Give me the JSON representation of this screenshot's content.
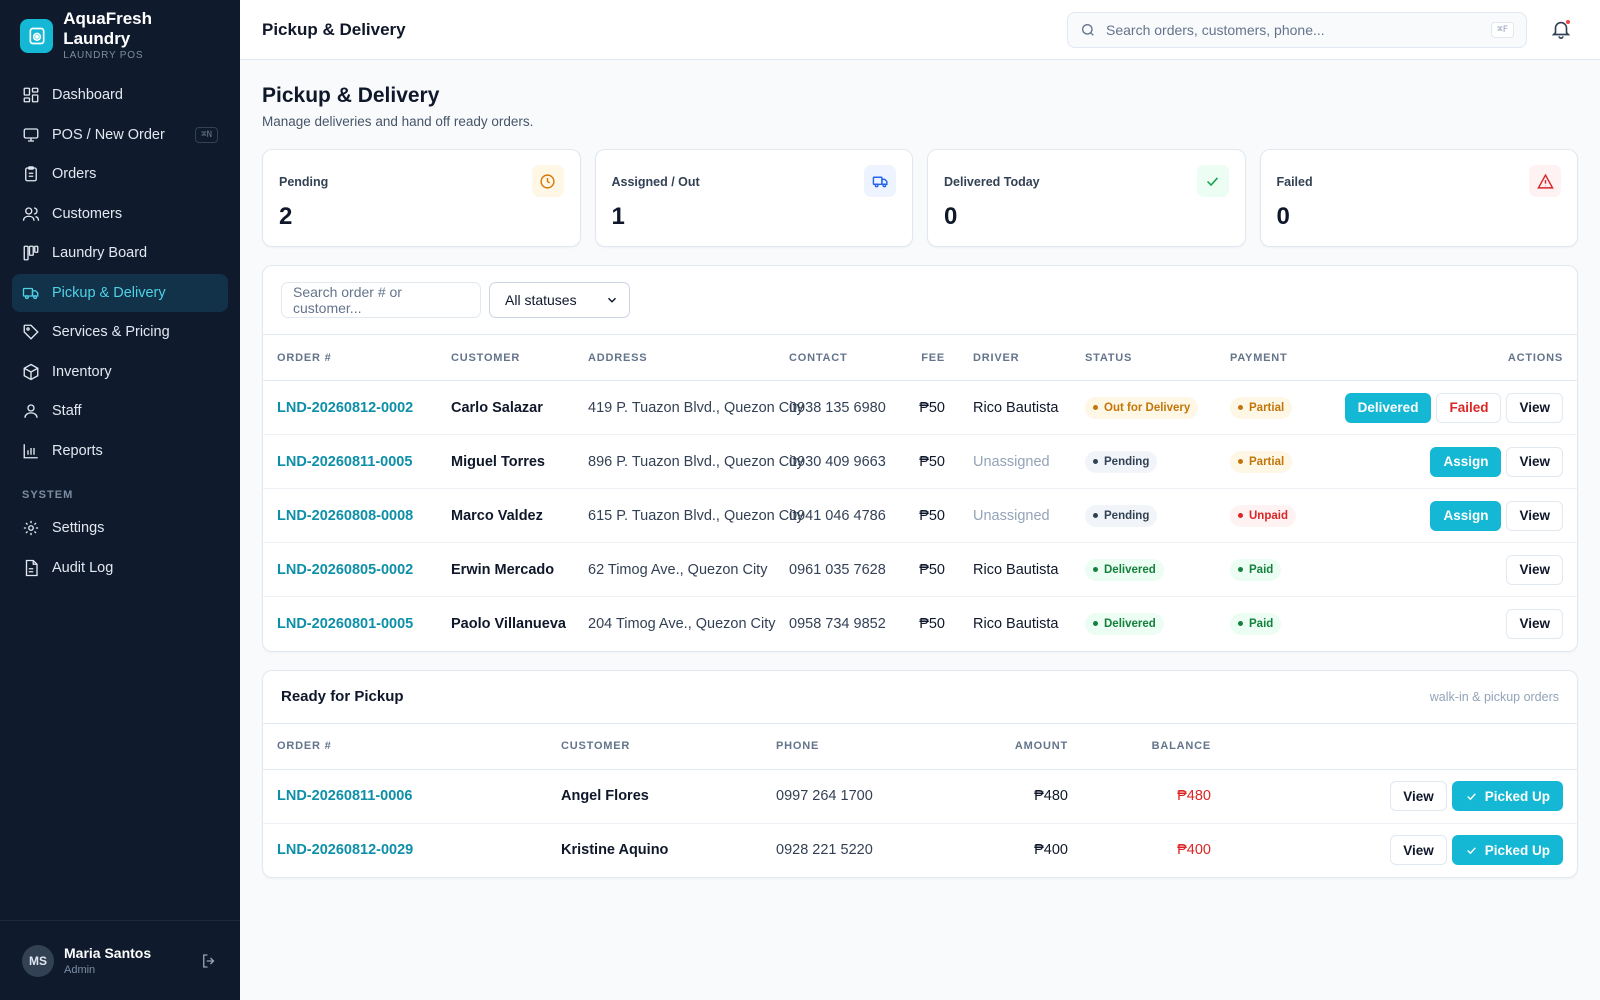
{
  "brand": {
    "name": "AquaFresh Laundry",
    "subtitle": "LAUNDRY POS"
  },
  "sidebar": {
    "items": [
      {
        "label": "Dashboard",
        "icon": "dashboard-icon"
      },
      {
        "label": "POS / New Order",
        "icon": "monitor-icon",
        "shortcut": "⌘N"
      },
      {
        "label": "Orders",
        "icon": "clipboard-icon"
      },
      {
        "label": "Customers",
        "icon": "users-icon"
      },
      {
        "label": "Laundry Board",
        "icon": "kanban-icon"
      },
      {
        "label": "Pickup & Delivery",
        "icon": "truck-icon",
        "active": true
      },
      {
        "label": "Services & Pricing",
        "icon": "tag-icon"
      },
      {
        "label": "Inventory",
        "icon": "box-icon"
      },
      {
        "label": "Staff",
        "icon": "user-icon"
      },
      {
        "label": "Reports",
        "icon": "bar-chart-icon"
      }
    ],
    "system_label": "SYSTEM",
    "system_items": [
      {
        "label": "Settings",
        "icon": "gear-icon"
      },
      {
        "label": "Audit Log",
        "icon": "file-icon"
      }
    ],
    "user": {
      "initials": "MS",
      "name": "Maria Santos",
      "role": "Admin"
    }
  },
  "topbar": {
    "title": "Pickup & Delivery",
    "search_placeholder": "Search orders, customers, phone...",
    "search_shortcut": "⌘F"
  },
  "page": {
    "title": "Pickup & Delivery",
    "subtitle": "Manage deliveries and hand off ready orders."
  },
  "stats": [
    {
      "label": "Pending",
      "value": "2",
      "icon": "clock-icon",
      "color": "#d97706",
      "bg": "#fef7e6"
    },
    {
      "label": "Assigned / Out",
      "value": "1",
      "icon": "truck-icon",
      "color": "#2563eb",
      "bg": "#eef4ff"
    },
    {
      "label": "Delivered Today",
      "value": "0",
      "icon": "check-icon",
      "color": "#16a34a",
      "bg": "#ecfdf3"
    },
    {
      "label": "Failed",
      "value": "0",
      "icon": "alert-triangle-icon",
      "color": "#dc2626",
      "bg": "#fef2f2"
    }
  ],
  "filters": {
    "search_placeholder": "Search order # or customer...",
    "status_value": "All statuses"
  },
  "deliveries": {
    "columns": [
      "ORDER #",
      "CUSTOMER",
      "ADDRESS",
      "CONTACT",
      "FEE",
      "DRIVER",
      "STATUS",
      "PAYMENT",
      "ACTIONS"
    ],
    "rows": [
      {
        "order": "LND-20260812-0002",
        "customer": "Carlo Salazar",
        "address": "419 P. Tuazon Blvd., Quezon City",
        "contact": "0938 135 6980",
        "fee": "₱50",
        "driver": "Rico Bautista",
        "status": "Out for Delivery",
        "payment": "Partial"
      },
      {
        "order": "LND-20260811-0005",
        "customer": "Miguel Torres",
        "address": "896 P. Tuazon Blvd., Quezon City",
        "contact": "0930 409 9663",
        "fee": "₱50",
        "driver": "Unassigned",
        "status": "Pending",
        "payment": "Partial"
      },
      {
        "order": "LND-20260808-0008",
        "customer": "Marco Valdez",
        "address": "615 P. Tuazon Blvd., Quezon City",
        "contact": "0941 046 4786",
        "fee": "₱50",
        "driver": "Unassigned",
        "status": "Pending",
        "payment": "Unpaid"
      },
      {
        "order": "LND-20260805-0002",
        "customer": "Erwin Mercado",
        "address": "62 Timog Ave., Quezon City",
        "contact": "0961 035 7628",
        "fee": "₱50",
        "driver": "Rico Bautista",
        "status": "Delivered",
        "payment": "Paid"
      },
      {
        "order": "LND-20260801-0005",
        "customer": "Paolo Villanueva",
        "address": "204 Timog Ave., Quezon City",
        "contact": "0958 734 9852",
        "fee": "₱50",
        "driver": "Rico Bautista",
        "status": "Delivered",
        "payment": "Paid"
      }
    ],
    "actions": {
      "delivered": "Delivered",
      "failed": "Failed",
      "assign": "Assign",
      "view": "View"
    }
  },
  "pickup": {
    "title": "Ready for Pickup",
    "note": "walk-in & pickup orders",
    "columns": [
      "ORDER #",
      "CUSTOMER",
      "PHONE",
      "AMOUNT",
      "BALANCE"
    ],
    "rows": [
      {
        "order": "LND-20260811-0006",
        "customer": "Angel Flores",
        "phone": "0997 264 1700",
        "amount": "₱480",
        "balance": "₱480"
      },
      {
        "order": "LND-20260812-0029",
        "customer": "Kristine Aquino",
        "phone": "0928 221 5220",
        "amount": "₱400",
        "balance": "₱400"
      }
    ],
    "actions": {
      "view": "View",
      "picked_up": "Picked Up"
    }
  }
}
